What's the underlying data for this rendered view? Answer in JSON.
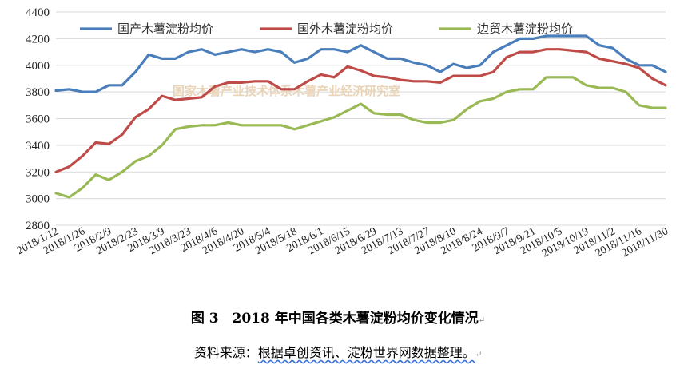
{
  "chart_data": {
    "type": "line",
    "title": "",
    "xlabel": "",
    "ylabel": "",
    "ylim": [
      2800,
      4400
    ],
    "yticks": [
      2800,
      3000,
      3200,
      3400,
      3600,
      3800,
      4000,
      4200,
      4400
    ],
    "grid": "horizontal",
    "legend_position": "top",
    "x_tick_labels": [
      "2018/1/12",
      "2018/1/26",
      "2018/2/9",
      "2018/2/23",
      "2018/3/9",
      "2018/3/23",
      "2018/4/6",
      "2018/4/20",
      "2018/5/4",
      "2018/5/18",
      "2018/6/1",
      "2018/6/15",
      "2018/6/29",
      "2018/7/13",
      "2018/7/27",
      "2018/8/10",
      "2018/8/24",
      "2018/9/7",
      "2018/9/21",
      "2018/10/5",
      "2018/10/19",
      "2018/11/2",
      "2018/11/16",
      "2018/11/30"
    ],
    "x": [
      "2018/1/12",
      "2018/1/19",
      "2018/1/26",
      "2018/2/2",
      "2018/2/9",
      "2018/2/16",
      "2018/2/23",
      "2018/3/2",
      "2018/3/9",
      "2018/3/16",
      "2018/3/23",
      "2018/3/30",
      "2018/4/6",
      "2018/4/13",
      "2018/4/20",
      "2018/4/27",
      "2018/5/4",
      "2018/5/11",
      "2018/5/18",
      "2018/5/25",
      "2018/6/1",
      "2018/6/8",
      "2018/6/15",
      "2018/6/22",
      "2018/6/29",
      "2018/7/6",
      "2018/7/13",
      "2018/7/20",
      "2018/7/27",
      "2018/8/3",
      "2018/8/10",
      "2018/8/17",
      "2018/8/24",
      "2018/8/31",
      "2018/9/7",
      "2018/9/14",
      "2018/9/21",
      "2018/9/28",
      "2018/10/5",
      "2018/10/12",
      "2018/10/19",
      "2018/10/26",
      "2018/11/2",
      "2018/11/9",
      "2018/11/16",
      "2018/11/23",
      "2018/11/30"
    ],
    "series": [
      {
        "name": "国产木薯淀粉均价",
        "color": "#4a7ebb",
        "values": [
          3810,
          3820,
          3800,
          3800,
          3850,
          3850,
          3950,
          4080,
          4050,
          4050,
          4100,
          4120,
          4080,
          4100,
          4120,
          4100,
          4120,
          4100,
          4020,
          4050,
          4120,
          4120,
          4100,
          4150,
          4100,
          4050,
          4050,
          4020,
          4000,
          3950,
          4010,
          3980,
          4000,
          4100,
          4150,
          4200,
          4200,
          4220,
          4220,
          4220,
          4220,
          4150,
          4130,
          4050,
          4000,
          4000,
          3950
        ]
      },
      {
        "name": "国外木薯淀粉均价",
        "color": "#be4b48",
        "values": [
          3200,
          3240,
          3320,
          3420,
          3410,
          3480,
          3610,
          3670,
          3770,
          3740,
          3750,
          3760,
          3840,
          3870,
          3870,
          3880,
          3880,
          3820,
          3820,
          3880,
          3930,
          3910,
          3990,
          3960,
          3920,
          3910,
          3890,
          3880,
          3880,
          3870,
          3920,
          3920,
          3920,
          3950,
          4060,
          4100,
          4100,
          4120,
          4120,
          4110,
          4100,
          4050,
          4030,
          4010,
          3980,
          3900,
          3850
        ]
      },
      {
        "name": "边贸木薯淀粉均价",
        "color": "#98b954",
        "values": [
          3040,
          3010,
          3080,
          3180,
          3140,
          3200,
          3280,
          3320,
          3400,
          3520,
          3540,
          3550,
          3550,
          3570,
          3550,
          3550,
          3550,
          3550,
          3520,
          3550,
          3580,
          3610,
          3660,
          3710,
          3640,
          3630,
          3630,
          3590,
          3570,
          3570,
          3590,
          3670,
          3730,
          3750,
          3800,
          3820,
          3820,
          3910,
          3910,
          3910,
          3850,
          3830,
          3830,
          3800,
          3700,
          3680,
          3680
        ]
      }
    ],
    "watermark": "国家木薯产业技术体系木薯产业经济研究室"
  },
  "caption": {
    "title": "图 3　2018 年中国各类木薯淀粉均价变化情况",
    "source_prefix": "资料来源：",
    "source_body": "根据卓创资讯、淀粉世界网数据整理。"
  }
}
